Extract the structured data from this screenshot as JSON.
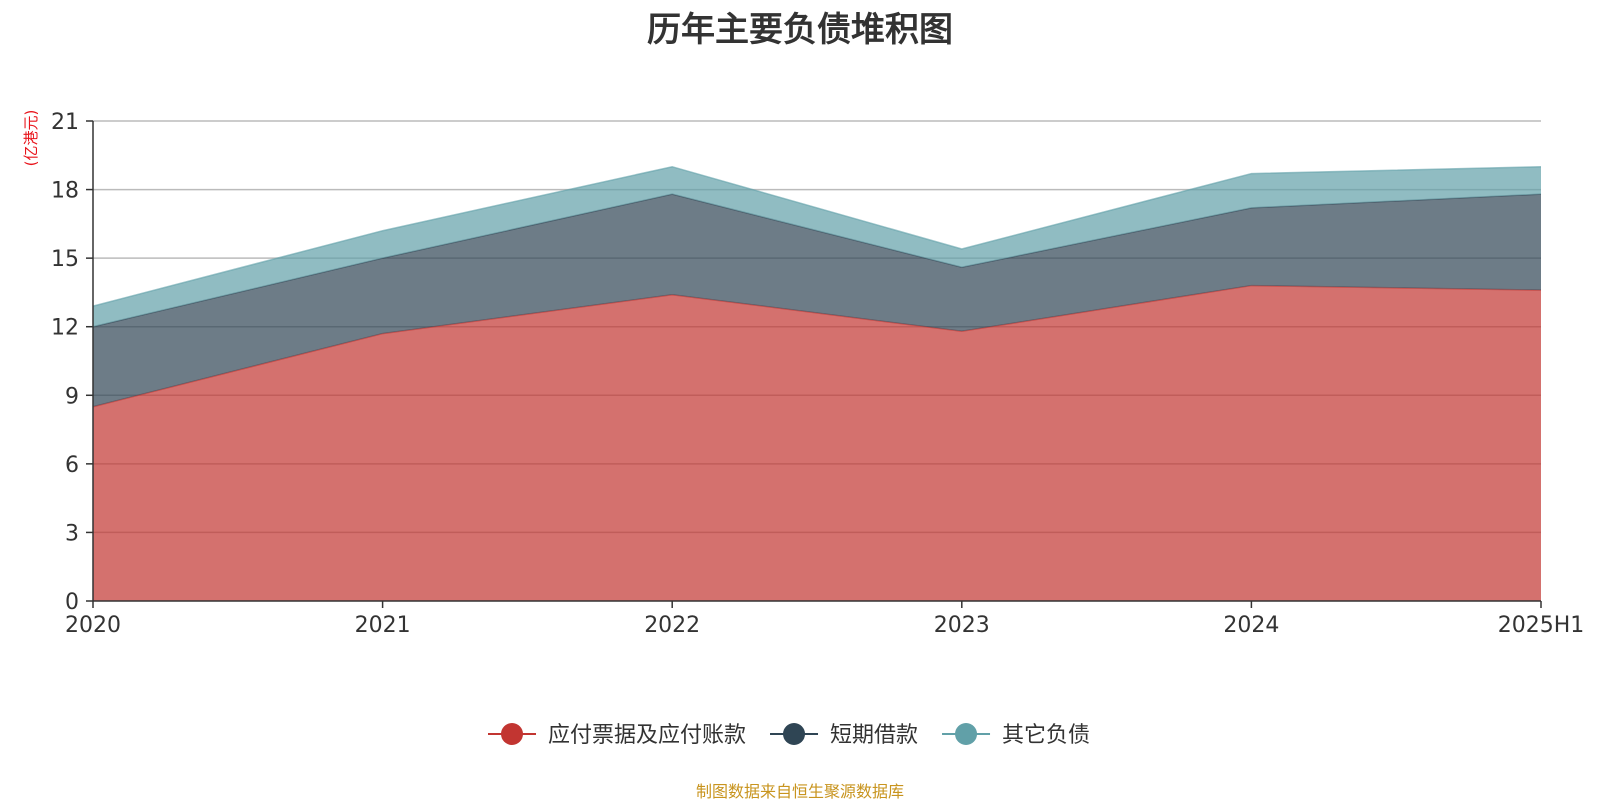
{
  "chart_data": {
    "type": "area",
    "stacked": true,
    "title": "历年主要负债堆积图",
    "unit_label": "(亿港元)",
    "categories": [
      "2020",
      "2021",
      "2022",
      "2023",
      "2024",
      "2025H1"
    ],
    "ylim": [
      0,
      21
    ],
    "yticks": [
      0,
      3,
      6,
      9,
      12,
      15,
      18,
      21
    ],
    "grid": true,
    "legend_position": "bottom-center",
    "series": [
      {
        "name": "应付票据及应付账款",
        "color": "#c23531",
        "values": [
          8.5,
          11.7,
          13.4,
          11.8,
          13.8,
          13.6
        ]
      },
      {
        "name": "短期借款",
        "color": "#2f4554",
        "values": [
          3.5,
          3.3,
          4.4,
          2.8,
          3.4,
          4.2
        ]
      },
      {
        "name": "其它负债",
        "color": "#61a0a8",
        "values": [
          0.9,
          1.2,
          1.2,
          0.8,
          1.5,
          1.2
        ]
      }
    ]
  },
  "source_note": "制图数据来自恒生聚源数据库",
  "colors": {
    "unit_label": "#e8141b",
    "source_note": "#c8941e",
    "axis": "#333333",
    "grid": "#bbbbbb",
    "tick_text": "#333333"
  }
}
